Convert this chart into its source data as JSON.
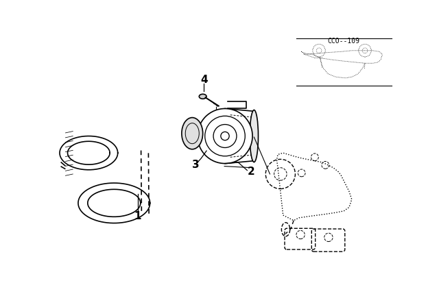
{
  "bg_color": "#ffffff",
  "line_color": "#000000",
  "fig_width": 6.4,
  "fig_height": 4.48,
  "dpi": 100,
  "part_number_text": "CCO--109"
}
